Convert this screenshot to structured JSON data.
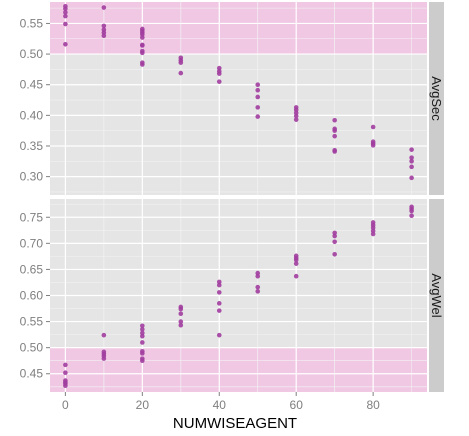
{
  "chart_data": {
    "type": "scatter",
    "xlabel": "NUMWISEAGENT",
    "x_ticks": [
      0,
      20,
      40,
      60,
      80
    ],
    "xlim": [
      -4,
      94
    ],
    "colors": {
      "point": "#a13d9e",
      "panel_bg": "#e5e5e5",
      "highlight": "#f0c8e4",
      "grid_major": "#ffffff",
      "strip_bg": "#cccccc",
      "tick_text": "#7f7f7f"
    },
    "panels": [
      {
        "strip_label": "AvgSec",
        "ylim": [
          0.27,
          0.585
        ],
        "y_ticks": [
          "0.30",
          "0.35",
          "0.40",
          "0.45",
          "0.50",
          "0.55"
        ],
        "highlight_band": [
          0.5,
          0.585
        ],
        "points": [
          [
            0,
            0.516
          ],
          [
            0,
            0.549
          ],
          [
            0,
            0.562
          ],
          [
            0,
            0.568
          ],
          [
            0,
            0.574
          ],
          [
            0,
            0.578
          ],
          [
            10,
            0.53
          ],
          [
            10,
            0.535
          ],
          [
            10,
            0.54
          ],
          [
            10,
            0.546
          ],
          [
            10,
            0.576
          ],
          [
            20,
            0.483
          ],
          [
            20,
            0.486
          ],
          [
            20,
            0.502
          ],
          [
            20,
            0.505
          ],
          [
            20,
            0.514
          ],
          [
            20,
            0.515
          ],
          [
            20,
            0.527
          ],
          [
            20,
            0.532
          ],
          [
            20,
            0.535
          ],
          [
            20,
            0.538
          ],
          [
            20,
            0.541
          ],
          [
            30,
            0.469
          ],
          [
            30,
            0.486
          ],
          [
            30,
            0.49
          ],
          [
            30,
            0.494
          ],
          [
            40,
            0.455
          ],
          [
            40,
            0.468
          ],
          [
            40,
            0.472
          ],
          [
            40,
            0.477
          ],
          [
            50,
            0.398
          ],
          [
            50,
            0.413
          ],
          [
            50,
            0.43
          ],
          [
            50,
            0.441
          ],
          [
            50,
            0.45
          ],
          [
            60,
            0.393
          ],
          [
            60,
            0.399
          ],
          [
            60,
            0.404
          ],
          [
            60,
            0.409
          ],
          [
            60,
            0.413
          ],
          [
            70,
            0.341
          ],
          [
            70,
            0.343
          ],
          [
            70,
            0.366
          ],
          [
            70,
            0.375
          ],
          [
            70,
            0.378
          ],
          [
            70,
            0.392
          ],
          [
            80,
            0.351
          ],
          [
            80,
            0.354
          ],
          [
            80,
            0.357
          ],
          [
            80,
            0.381
          ],
          [
            90,
            0.298
          ],
          [
            90,
            0.316
          ],
          [
            90,
            0.325
          ],
          [
            90,
            0.331
          ],
          [
            90,
            0.344
          ]
        ]
      },
      {
        "strip_label": "AvgWel",
        "ylim": [
          0.415,
          0.785
        ],
        "y_ticks": [
          "0.45",
          "0.50",
          "0.55",
          "0.60",
          "0.65",
          "0.70",
          "0.75"
        ],
        "highlight_band": [
          0.415,
          0.5
        ],
        "points": [
          [
            0,
            0.427
          ],
          [
            0,
            0.431
          ],
          [
            0,
            0.434
          ],
          [
            0,
            0.437
          ],
          [
            0,
            0.452
          ],
          [
            0,
            0.467
          ],
          [
            10,
            0.479
          ],
          [
            10,
            0.484
          ],
          [
            10,
            0.488
          ],
          [
            10,
            0.492
          ],
          [
            10,
            0.524
          ],
          [
            20,
            0.475
          ],
          [
            20,
            0.479
          ],
          [
            20,
            0.489
          ],
          [
            20,
            0.493
          ],
          [
            20,
            0.51
          ],
          [
            20,
            0.522
          ],
          [
            20,
            0.528
          ],
          [
            20,
            0.535
          ],
          [
            20,
            0.542
          ],
          [
            30,
            0.543
          ],
          [
            30,
            0.55
          ],
          [
            30,
            0.565
          ],
          [
            30,
            0.574
          ],
          [
            30,
            0.578
          ],
          [
            40,
            0.524
          ],
          [
            40,
            0.571
          ],
          [
            40,
            0.585
          ],
          [
            40,
            0.606
          ],
          [
            40,
            0.62
          ],
          [
            40,
            0.626
          ],
          [
            50,
            0.608
          ],
          [
            50,
            0.616
          ],
          [
            50,
            0.637
          ],
          [
            50,
            0.643
          ],
          [
            60,
            0.637
          ],
          [
            60,
            0.661
          ],
          [
            60,
            0.668
          ],
          [
            60,
            0.672
          ],
          [
            60,
            0.676
          ],
          [
            70,
            0.679
          ],
          [
            70,
            0.703
          ],
          [
            70,
            0.714
          ],
          [
            70,
            0.72
          ],
          [
            80,
            0.718
          ],
          [
            80,
            0.724
          ],
          [
            80,
            0.73
          ],
          [
            80,
            0.735
          ],
          [
            80,
            0.74
          ],
          [
            90,
            0.753
          ],
          [
            90,
            0.762
          ],
          [
            90,
            0.766
          ],
          [
            90,
            0.77
          ]
        ]
      }
    ]
  }
}
